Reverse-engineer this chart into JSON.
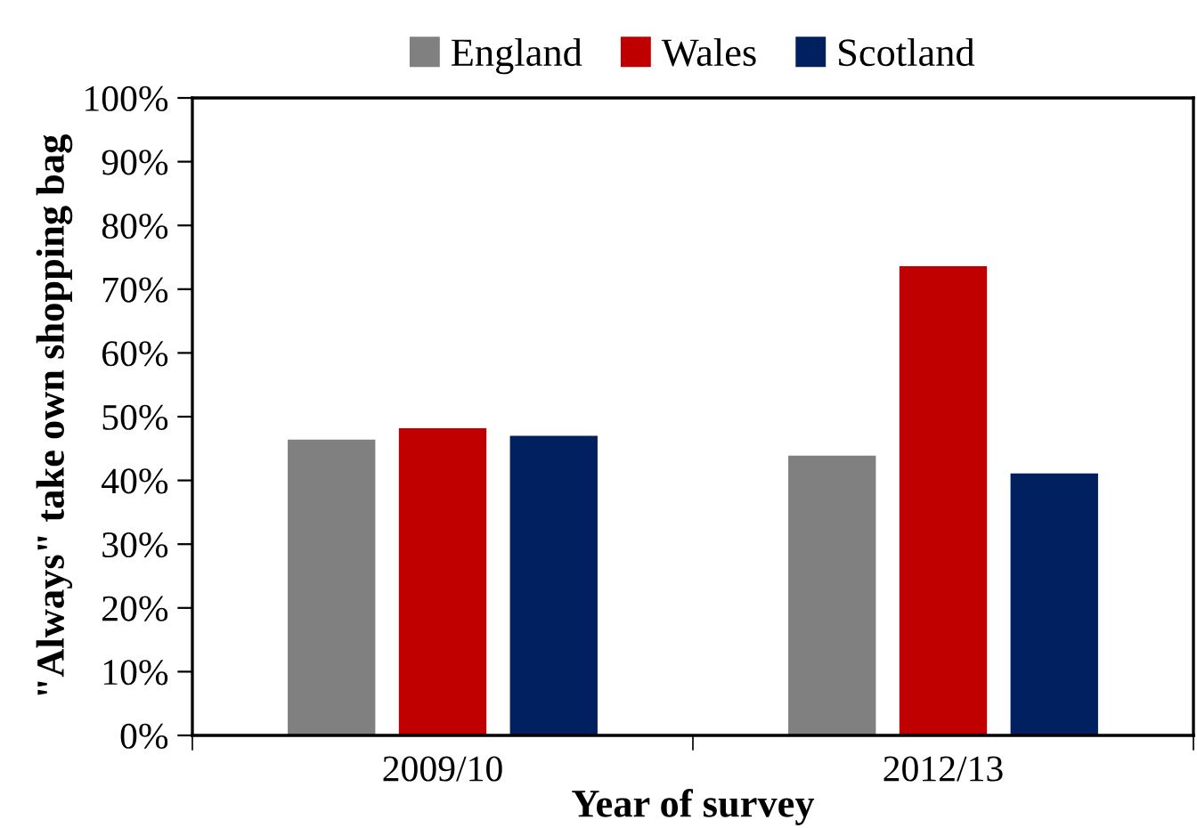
{
  "chart_data": {
    "type": "bar",
    "xlabel": "Year of survey",
    "ylabel": "\"Always\" take own shopping bag",
    "categories": [
      "2009/10",
      "2012/13"
    ],
    "series": [
      {
        "name": "England",
        "color": "#808080",
        "values": [
          46.4,
          43.9
        ]
      },
      {
        "name": "Wales",
        "color": "#c00000",
        "values": [
          48.2,
          73.6
        ]
      },
      {
        "name": "Scotland",
        "color": "#002060",
        "values": [
          47.0,
          41.1
        ]
      }
    ],
    "ylim": [
      0,
      100
    ],
    "yticks": [
      {
        "value": 0,
        "label": "0%"
      },
      {
        "value": 10,
        "label": "10%"
      },
      {
        "value": 20,
        "label": "20%"
      },
      {
        "value": 30,
        "label": "30%"
      },
      {
        "value": 40,
        "label": "40%"
      },
      {
        "value": 50,
        "label": "50%"
      },
      {
        "value": 60,
        "label": "60%"
      },
      {
        "value": 70,
        "label": "70%"
      },
      {
        "value": 80,
        "label": "80%"
      },
      {
        "value": 90,
        "label": "90%"
      },
      {
        "value": 100,
        "label": "100%"
      }
    ],
    "grid": false,
    "legend": "top"
  }
}
